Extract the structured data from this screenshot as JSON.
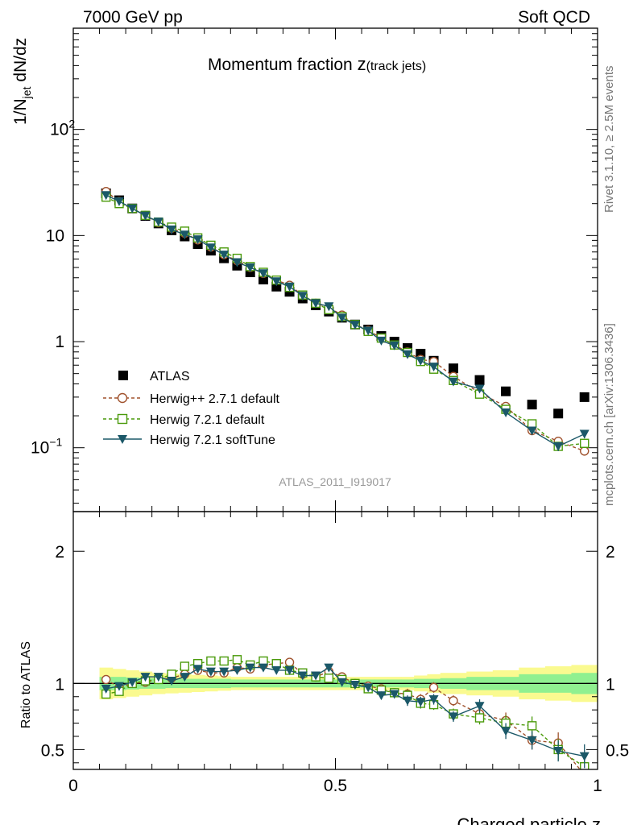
{
  "header": {
    "left": "7000 GeV pp",
    "right": "Soft QCD"
  },
  "side_text": {
    "rivet": "Rivet 3.1.10, ≥ 2.5M events",
    "mcplots": "mcplots.cern.ch [arXiv:1306.3436]"
  },
  "watermark": "ATLAS_2011_I919017",
  "colors": {
    "atlas": "#000000",
    "herwigpp": "#a0522d",
    "herwig721": "#4a9a0a",
    "softtune": "#1b5868",
    "band_inner": "#90f090",
    "band_outer": "#fafa90"
  },
  "chart_data": [
    {
      "type": "scatter",
      "title_main": "Momentum fraction ",
      "title_var": "z",
      "title_sub": "(track jets)",
      "ylabel": "1/N_jet dN/dz",
      "ylabel_parts": {
        "a": "1/N",
        "sub": "jet",
        "b": " dN/dz"
      },
      "yscale": "log",
      "ylim": [
        0.025,
        900
      ],
      "xlim": [
        0,
        1
      ],
      "ytick_labels": [
        {
          "value": 0.1,
          "base": "10",
          "exp": "−1"
        },
        {
          "value": 1,
          "base": "1",
          "exp": ""
        },
        {
          "value": 10,
          "base": "10",
          "exp": ""
        },
        {
          "value": 100,
          "base": "10",
          "exp": "2"
        }
      ],
      "legend_position": "bottom-left",
      "z": [
        0.0625,
        0.0875,
        0.1125,
        0.1375,
        0.1625,
        0.1875,
        0.2125,
        0.2375,
        0.2625,
        0.2875,
        0.3125,
        0.3375,
        0.3625,
        0.3875,
        0.4125,
        0.4375,
        0.4625,
        0.4875,
        0.5125,
        0.5375,
        0.5625,
        0.5875,
        0.6125,
        0.6375,
        0.6625,
        0.6875,
        0.725,
        0.775,
        0.825,
        0.875,
        0.925,
        0.975
      ],
      "series": [
        {
          "name": "ATLAS",
          "style": "data",
          "values": [
            25,
            21.5,
            18,
            15.3,
            13,
            11.2,
            9.8,
            8.3,
            7.2,
            6.1,
            5.2,
            4.5,
            3.85,
            3.3,
            2.95,
            2.55,
            2.2,
            1.92,
            1.68,
            1.45,
            1.3,
            1.13,
            1.0,
            0.87,
            0.77,
            0.66,
            0.56,
            0.435,
            0.34,
            0.255,
            0.21,
            0.3
          ]
        },
        {
          "name": "Herwig++ 2.7.1 default",
          "style": "circle",
          "values": [
            26,
            21,
            18,
            15.5,
            13.2,
            11.7,
            10.5,
            9.1,
            7.8,
            6.6,
            5.8,
            5.0,
            4.4,
            3.8,
            3.4,
            2.75,
            2.3,
            2.1,
            1.78,
            1.45,
            1.28,
            1.08,
            0.93,
            0.8,
            0.68,
            0.65,
            0.47,
            0.33,
            0.245,
            0.145,
            0.115,
            0.093
          ],
          "errors": [
            0,
            0,
            0,
            0,
            0,
            0,
            0,
            0,
            0,
            0,
            0,
            0,
            0,
            0,
            0,
            0,
            0,
            0,
            0,
            0,
            0,
            0,
            0,
            0,
            0,
            0.03,
            0.02,
            0.015,
            0.012,
            0.01,
            0.01,
            0.008
          ]
        },
        {
          "name": "Herwig 7.2.1 default",
          "style": "square",
          "values": [
            23,
            20,
            18,
            15.5,
            13.4,
            12,
            11,
            9.5,
            8.1,
            7,
            6.1,
            5.1,
            4.5,
            3.8,
            3.25,
            2.75,
            2.3,
            2.0,
            1.72,
            1.45,
            1.25,
            1.08,
            0.93,
            0.79,
            0.65,
            0.55,
            0.43,
            0.32,
            0.23,
            0.168,
            0.103,
            0.11
          ],
          "errors": [
            0,
            0,
            0,
            0,
            0,
            0,
            0,
            0,
            0,
            0,
            0,
            0,
            0,
            0,
            0,
            0,
            0,
            0,
            0,
            0,
            0,
            0,
            0,
            0,
            0,
            0.03,
            0.02,
            0.015,
            0.012,
            0.01,
            0.01,
            0.01
          ]
        },
        {
          "name": "Herwig 7.2.1 softTune",
          "style": "triangle",
          "values": [
            24,
            21,
            18,
            15.4,
            13.5,
            11.4,
            10.2,
            9.2,
            7.7,
            6.6,
            5.6,
            5.0,
            4.4,
            3.7,
            3.3,
            2.7,
            2.3,
            2.15,
            1.68,
            1.44,
            1.27,
            1.02,
            0.92,
            0.76,
            0.66,
            0.58,
            0.42,
            0.36,
            0.215,
            0.145,
            0.103,
            0.135
          ],
          "errors": [
            0,
            0,
            0,
            0,
            0,
            0,
            0,
            0,
            0,
            0,
            0,
            0,
            0,
            0,
            0,
            0,
            0,
            0,
            0,
            0,
            0,
            0,
            0,
            0,
            0,
            0.03,
            0.02,
            0.015,
            0.012,
            0.01,
            0.01,
            0.012
          ]
        }
      ]
    },
    {
      "type": "line",
      "ylabel": "Ratio to ATLAS",
      "xlabel": "Charged particle z",
      "ylim": [
        0.35,
        2.3
      ],
      "xlim": [
        0,
        1
      ],
      "yticks": [
        0.5,
        1,
        2
      ],
      "ytick_labels": [
        "0.5",
        "1",
        "2"
      ],
      "xticks": [
        0,
        0.5,
        1
      ],
      "xtick_labels": [
        "0",
        "0.5",
        "1"
      ],
      "band_inner": [
        0.05,
        0.05,
        0.045,
        0.04,
        0.04,
        0.035,
        0.035,
        0.035,
        0.035,
        0.035,
        0.03,
        0.03,
        0.03,
        0.03,
        0.03,
        0.03,
        0.03,
        0.03,
        0.03,
        0.03,
        0.03,
        0.03,
        0.03,
        0.03,
        0.035,
        0.035,
        0.04,
        0.05,
        0.05,
        0.07,
        0.07,
        0.08
      ],
      "band_outer": [
        0.12,
        0.11,
        0.1,
        0.09,
        0.08,
        0.075,
        0.07,
        0.065,
        0.06,
        0.055,
        0.05,
        0.05,
        0.05,
        0.05,
        0.05,
        0.05,
        0.05,
        0.05,
        0.05,
        0.05,
        0.05,
        0.05,
        0.05,
        0.05,
        0.06,
        0.07,
        0.08,
        0.09,
        0.1,
        0.12,
        0.13,
        0.14
      ],
      "series": [
        {
          "name": "Herwig++ 2.7.1 default",
          "style": "circle",
          "values": [
            1.03,
            0.97,
            1.0,
            1.01,
            1.03,
            1.04,
            1.07,
            1.1,
            1.08,
            1.08,
            1.12,
            1.11,
            1.14,
            1.15,
            1.16,
            1.07,
            1.05,
            1.09,
            1.05,
            1.0,
            0.98,
            0.96,
            0.93,
            0.92,
            0.88,
            0.97,
            0.87,
            0.77,
            0.72,
            0.57,
            0.55,
            0.31
          ],
          "errors": [
            0,
            0,
            0,
            0,
            0,
            0,
            0,
            0,
            0,
            0,
            0,
            0,
            0,
            0,
            0,
            0,
            0,
            0,
            0,
            0.02,
            0.02,
            0.03,
            0.03,
            0.04,
            0.04,
            0.04,
            0.04,
            0.05,
            0.06,
            0.07,
            0.08,
            0.09
          ]
        },
        {
          "name": "Herwig 7.2.1 default",
          "style": "square",
          "values": [
            0.92,
            0.94,
            1.0,
            1.02,
            1.03,
            1.07,
            1.13,
            1.15,
            1.17,
            1.17,
            1.18,
            1.14,
            1.17,
            1.15,
            1.1,
            1.08,
            1.05,
            1.04,
            1.03,
            1.0,
            0.96,
            0.95,
            0.93,
            0.91,
            0.85,
            0.84,
            0.77,
            0.74,
            0.7,
            0.68,
            0.5,
            0.37
          ],
          "errors": [
            0,
            0,
            0,
            0,
            0,
            0,
            0,
            0,
            0,
            0,
            0,
            0,
            0,
            0,
            0,
            0,
            0,
            0,
            0,
            0.02,
            0.02,
            0.03,
            0.03,
            0.04,
            0.04,
            0.04,
            0.04,
            0.05,
            0.06,
            0.07,
            0.08,
            0.09
          ]
        },
        {
          "name": "Herwig 7.2.1 softTune",
          "style": "triangle",
          "values": [
            0.96,
            0.98,
            1.01,
            1.05,
            1.05,
            1.02,
            1.05,
            1.11,
            1.09,
            1.09,
            1.1,
            1.12,
            1.12,
            1.1,
            1.1,
            1.06,
            1.06,
            1.12,
            1.01,
            0.99,
            0.97,
            0.91,
            0.92,
            0.87,
            0.86,
            0.88,
            0.75,
            0.83,
            0.64,
            0.57,
            0.49,
            0.45
          ],
          "errors": [
            0,
            0,
            0,
            0,
            0,
            0,
            0,
            0,
            0,
            0,
            0,
            0,
            0,
            0,
            0,
            0,
            0,
            0,
            0,
            0.02,
            0.03,
            0.03,
            0.03,
            0.04,
            0.04,
            0.04,
            0.04,
            0.05,
            0.06,
            0.07,
            0.08,
            0.09
          ]
        }
      ]
    }
  ]
}
